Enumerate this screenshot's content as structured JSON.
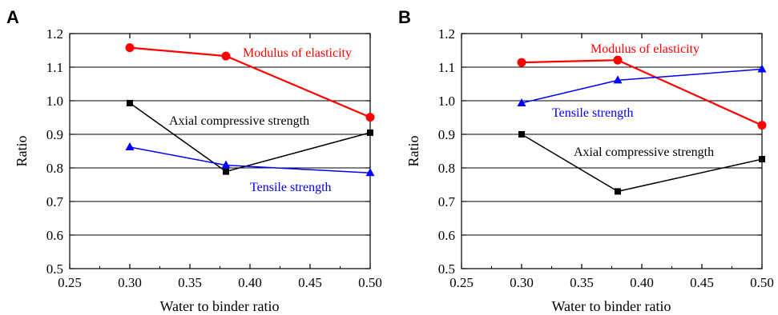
{
  "chart_data": [
    {
      "panel": "A",
      "type": "line",
      "xlabel": "Water to binder ratio",
      "ylabel": "Ratio",
      "xlim": [
        0.25,
        0.5
      ],
      "ylim": [
        0.5,
        1.2
      ],
      "xticks": [
        "0.25",
        "0.30",
        "0.35",
        "0.40",
        "0.45",
        "0.50"
      ],
      "yticks": [
        "0.5",
        "0.6",
        "0.7",
        "0.8",
        "0.9",
        "1.0",
        "1.1",
        "1.2"
      ],
      "grid": "horizontal",
      "x": [
        0.3,
        0.38,
        0.5
      ],
      "series": [
        {
          "name": "Modulus of elasticity",
          "color": "#ff0000",
          "marker": "circle",
          "values": [
            1.158,
            1.133,
            0.951
          ]
        },
        {
          "name": "Axial compressive strength",
          "color": "#000000",
          "marker": "square",
          "values": [
            0.993,
            0.789,
            0.905
          ]
        },
        {
          "name": "Tensile strength",
          "color": "#0000ff",
          "marker": "triangle",
          "values": [
            0.862,
            0.808,
            0.785
          ]
        }
      ]
    },
    {
      "panel": "B",
      "type": "line",
      "xlabel": "Water to binder ratio",
      "ylabel": "Ratio",
      "xlim": [
        0.25,
        0.5
      ],
      "ylim": [
        0.5,
        1.2
      ],
      "xticks": [
        "0.25",
        "0.30",
        "0.35",
        "0.40",
        "0.45",
        "0.50"
      ],
      "yticks": [
        "0.5",
        "0.6",
        "0.7",
        "0.8",
        "0.9",
        "1.0",
        "1.1",
        "1.2"
      ],
      "grid": "horizontal",
      "x": [
        0.3,
        0.38,
        0.5
      ],
      "series": [
        {
          "name": "Modulus of elasticity",
          "color": "#ff0000",
          "marker": "circle",
          "values": [
            1.114,
            1.121,
            0.927
          ]
        },
        {
          "name": "Tensile strength",
          "color": "#0000ff",
          "marker": "triangle",
          "values": [
            0.993,
            1.061,
            1.094
          ]
        },
        {
          "name": "Axial compressive strength",
          "color": "#000000",
          "marker": "square",
          "values": [
            0.9,
            0.73,
            0.826
          ]
        }
      ]
    }
  ]
}
